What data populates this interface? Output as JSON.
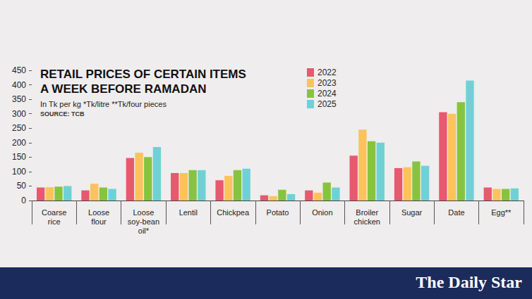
{
  "chart_data": {
    "type": "bar",
    "title": "RETAIL PRICES OF CERTAIN ITEMS A WEEK BEFORE RAMADAN",
    "subtitle": "In Tk per kg *Tk/litre **Tk/four pieces",
    "source": "SOURCE: TCB",
    "footer": "The Daily Star",
    "categories": [
      "Coarse rice",
      "Loose flour",
      "Loose soy-bean oil*",
      "Lentil",
      "Chickpea",
      "Potato",
      "Onion",
      "Broiler chicken",
      "Sugar",
      "Date",
      "Egg**"
    ],
    "series": [
      {
        "name": "2022",
        "color": "#e8586f",
        "values": [
          45,
          35,
          147,
          95,
          70,
          18,
          35,
          155,
          112,
          305,
          45
        ]
      },
      {
        "name": "2023",
        "color": "#fcc25c",
        "values": [
          46,
          58,
          165,
          95,
          85,
          15,
          27,
          245,
          115,
          300,
          40
        ]
      },
      {
        "name": "2024",
        "color": "#86c440",
        "values": [
          48,
          45,
          150,
          105,
          105,
          37,
          62,
          205,
          135,
          340,
          40
        ]
      },
      {
        "name": "2025",
        "color": "#6fd1d6",
        "values": [
          50,
          40,
          185,
          105,
          110,
          22,
          45,
          200,
          120,
          415,
          42
        ]
      }
    ],
    "ylim": [
      0,
      450
    ],
    "yticks": [
      0,
      50,
      100,
      150,
      200,
      250,
      300,
      350,
      400,
      450
    ],
    "grid": false,
    "legend": "top",
    "data_labels": false
  }
}
